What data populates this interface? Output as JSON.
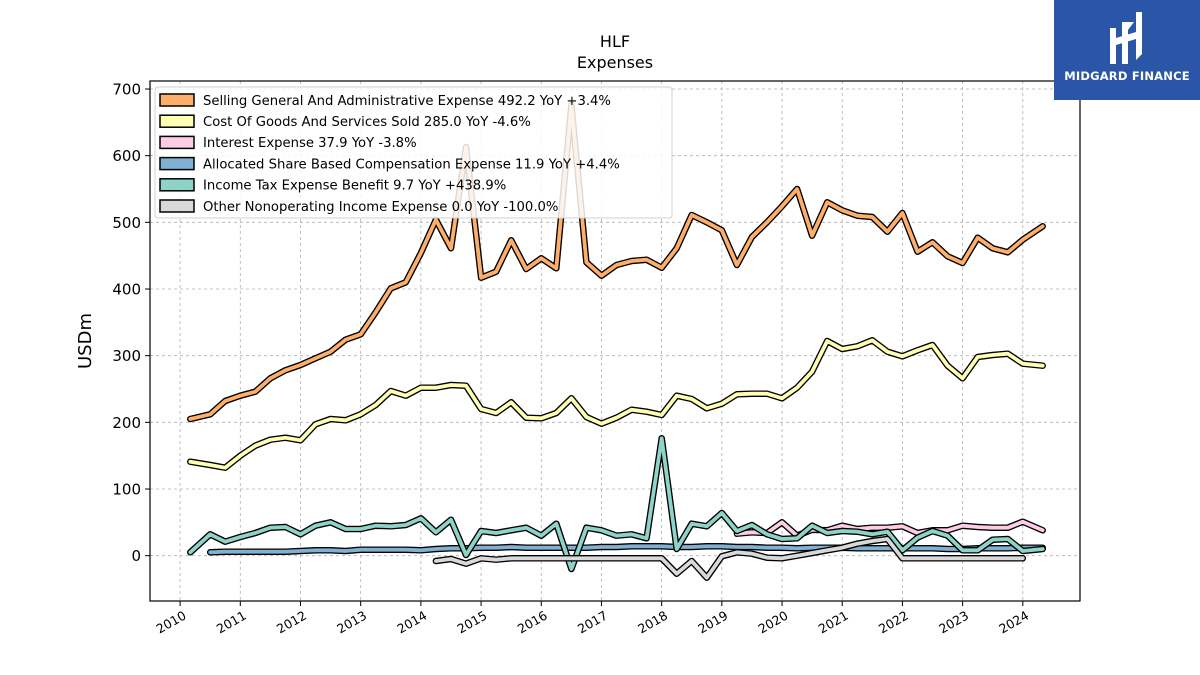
{
  "chart_data": {
    "type": "line",
    "title": "HLF",
    "subtitle": "Expenses",
    "ylabel": "USDm",
    "xlabel": "",
    "xlim": [
      2009.5,
      2024.95
    ],
    "ylim": [
      -68,
      712
    ],
    "yticks": [
      0,
      100,
      200,
      300,
      400,
      500,
      600,
      700
    ],
    "xticks": [
      2010,
      2011,
      2012,
      2013,
      2014,
      2015,
      2016,
      2017,
      2018,
      2019,
      2020,
      2021,
      2022,
      2023,
      2024
    ],
    "grid": true,
    "legend_position": "top-left",
    "series": [
      {
        "name": "Selling General And Administrative Expense",
        "legend": "Selling General And Administrative Expense  492.2 YoY +3.4%",
        "color": "#fdae6b",
        "x": [
          2010.17,
          2010.5,
          2010.75,
          2011.0,
          2011.25,
          2011.5,
          2011.75,
          2012.0,
          2012.25,
          2012.5,
          2012.75,
          2013.0,
          2013.25,
          2013.5,
          2013.75,
          2014.0,
          2014.25,
          2014.5,
          2014.75,
          2015.0,
          2015.25,
          2015.5,
          2015.75,
          2016.0,
          2016.25,
          2016.5,
          2016.75,
          2017.0,
          2017.25,
          2017.5,
          2017.75,
          2018.0,
          2018.25,
          2018.5,
          2018.75,
          2019.0,
          2019.25,
          2019.5,
          2019.75,
          2020.0,
          2020.25,
          2020.5,
          2020.75,
          2021.0,
          2021.25,
          2021.5,
          2021.75,
          2022.0,
          2022.25,
          2022.5,
          2022.75,
          2023.0,
          2023.25,
          2023.5,
          2023.75,
          2024.0,
          2024.33
        ],
        "y": [
          205,
          212,
          232,
          240,
          246,
          266,
          278,
          286,
          296,
          306,
          324,
          332,
          365,
          401,
          410,
          454,
          504,
          461,
          613,
          417,
          426,
          473,
          430,
          446,
          431,
          676,
          440,
          420,
          436,
          442,
          444,
          432,
          461,
          511,
          500,
          488,
          436,
          478,
          500,
          524,
          550,
          480,
          530,
          518,
          510,
          508,
          486,
          514,
          456,
          470,
          449,
          439,
          477,
          461,
          455,
          474,
          494
        ]
      },
      {
        "name": "Cost Of Goods And Services Sold",
        "legend": "Cost Of Goods And Services Sold  285.0 YoY -4.6%",
        "color": "#ffffb3",
        "x": [
          2010.17,
          2010.5,
          2010.75,
          2011.0,
          2011.25,
          2011.5,
          2011.75,
          2012.0,
          2012.25,
          2012.5,
          2012.75,
          2013.0,
          2013.25,
          2013.5,
          2013.75,
          2014.0,
          2014.25,
          2014.5,
          2014.75,
          2015.0,
          2015.25,
          2015.5,
          2015.75,
          2016.0,
          2016.25,
          2016.5,
          2016.75,
          2017.0,
          2017.25,
          2017.5,
          2017.75,
          2018.0,
          2018.25,
          2018.5,
          2018.75,
          2019.0,
          2019.25,
          2019.5,
          2019.75,
          2020.0,
          2020.25,
          2020.5,
          2020.75,
          2021.0,
          2021.25,
          2021.5,
          2021.75,
          2022.0,
          2022.25,
          2022.5,
          2022.75,
          2023.0,
          2023.25,
          2023.5,
          2023.75,
          2024.0,
          2024.33
        ],
        "y": [
          141,
          136,
          132,
          150,
          165,
          174,
          177,
          173,
          197,
          205,
          203,
          212,
          226,
          247,
          240,
          252,
          252,
          256,
          255,
          220,
          214,
          230,
          207,
          206,
          214,
          236,
          208,
          198,
          207,
          219,
          216,
          211,
          240,
          235,
          221,
          228,
          242,
          243,
          243,
          236,
          252,
          276,
          322,
          310,
          314,
          323,
          306,
          299,
          308,
          316,
          285,
          266,
          298,
          301,
          303,
          288,
          285
        ]
      },
      {
        "name": "Interest Expense",
        "legend": "Interest Expense  37.9 YoY -3.8%",
        "color": "#fccde5",
        "x": [
          2019.25,
          2019.5,
          2019.75,
          2020.0,
          2020.25,
          2020.5,
          2020.75,
          2021.0,
          2021.25,
          2021.5,
          2021.75,
          2022.0,
          2022.25,
          2022.5,
          2022.75,
          2023.0,
          2023.25,
          2023.5,
          2023.75,
          2024.0,
          2024.33
        ],
        "y": [
          33,
          35,
          34,
          50,
          30,
          39,
          38,
          45,
          40,
          42,
          42,
          44,
          34,
          38,
          38,
          45,
          43,
          42,
          42,
          51,
          38
        ]
      },
      {
        "name": "Allocated Share Based Compensation Expense",
        "legend": "Allocated Share Based Compensation Expense  11.9 YoY +4.4%",
        "color": "#80b1d3",
        "x": [
          2010.5,
          2010.75,
          2011.0,
          2011.25,
          2011.5,
          2011.75,
          2012.0,
          2012.25,
          2012.5,
          2012.75,
          2013.0,
          2013.25,
          2013.5,
          2013.75,
          2014.0,
          2014.25,
          2014.5,
          2014.75,
          2015.0,
          2015.25,
          2015.5,
          2015.75,
          2016.0,
          2016.25,
          2016.5,
          2016.75,
          2017.0,
          2017.25,
          2017.5,
          2017.75,
          2018.0,
          2018.25,
          2018.5,
          2018.75,
          2019.0,
          2019.25,
          2019.5,
          2019.75,
          2020.0,
          2020.25,
          2020.5,
          2020.75,
          2021.0,
          2021.25,
          2021.5,
          2021.75,
          2022.0,
          2022.25,
          2022.5,
          2022.75,
          2023.0,
          2023.25,
          2023.5,
          2023.75,
          2024.0,
          2024.33
        ],
        "y": [
          5,
          6,
          6,
          6,
          6,
          6,
          7,
          8,
          8,
          7,
          9,
          9,
          9,
          9,
          8,
          10,
          11,
          11,
          12,
          12,
          13,
          12,
          12,
          12,
          12,
          12,
          13,
          13,
          14,
          14,
          14,
          13,
          13,
          14,
          14,
          13,
          13,
          12,
          12,
          11,
          12,
          12,
          12,
          11,
          11,
          11,
          11,
          11,
          11,
          10,
          10,
          11,
          11,
          11,
          12,
          12
        ]
      },
      {
        "name": "Income Tax Expense Benefit",
        "legend": "Income Tax Expense Benefit  9.7 YoY +438.9%",
        "color": "#8dd3c7",
        "x": [
          2010.17,
          2010.5,
          2010.75,
          2011.0,
          2011.25,
          2011.5,
          2011.75,
          2012.0,
          2012.25,
          2012.5,
          2012.75,
          2013.0,
          2013.25,
          2013.5,
          2013.75,
          2014.0,
          2014.25,
          2014.5,
          2014.75,
          2015.0,
          2015.25,
          2015.5,
          2015.75,
          2016.0,
          2016.25,
          2016.5,
          2016.75,
          2017.0,
          2017.25,
          2017.5,
          2017.75,
          2018.0,
          2018.25,
          2018.5,
          2018.75,
          2019.0,
          2019.25,
          2019.5,
          2019.75,
          2020.0,
          2020.25,
          2020.5,
          2020.75,
          2021.0,
          2021.25,
          2021.5,
          2021.75,
          2022.0,
          2022.25,
          2022.5,
          2022.75,
          2023.0,
          2023.25,
          2023.5,
          2023.75,
          2024.0,
          2024.33
        ],
        "y": [
          5,
          32,
          21,
          28,
          34,
          42,
          43,
          32,
          45,
          50,
          40,
          40,
          45,
          44,
          46,
          56,
          35,
          54,
          1,
          37,
          34,
          38,
          42,
          30,
          48,
          -20,
          42,
          38,
          30,
          32,
          26,
          176,
          10,
          48,
          44,
          64,
          37,
          46,
          32,
          25,
          26,
          45,
          34,
          37,
          36,
          32,
          36,
          8,
          27,
          37,
          30,
          8,
          8,
          24,
          25,
          7,
          10
        ]
      },
      {
        "name": "Other Nonoperating Income Expense",
        "legend": "Other Nonoperating Income Expense  0.0 YoY -100.0%",
        "color": "#d9d9d9",
        "x": [
          2014.25,
          2014.5,
          2014.75,
          2015.0,
          2015.25,
          2015.5,
          2015.75,
          2016.0,
          2016.25,
          2016.5,
          2016.75,
          2017.0,
          2017.25,
          2017.5,
          2017.75,
          2018.0,
          2018.25,
          2018.5,
          2018.75,
          2019.0,
          2019.25,
          2019.5,
          2019.75,
          2020.0,
          2020.25,
          2020.5,
          2020.75,
          2021.0,
          2021.25,
          2021.5,
          2021.75,
          2022.0,
          2022.25,
          2022.5,
          2022.75,
          2023.0,
          2023.25,
          2023.5,
          2023.75,
          2024.0
        ],
        "y": [
          -8,
          -5,
          -12,
          -4,
          -6,
          -4,
          -4,
          -4,
          -4,
          -4,
          -4,
          -4,
          -4,
          -4,
          -4,
          -4,
          -27,
          -8,
          -33,
          -1,
          5,
          3,
          -3,
          -4,
          0,
          4,
          8,
          12,
          18,
          22,
          25,
          -4,
          -4,
          -4,
          -4,
          -4,
          -4,
          -4,
          -4,
          -4
        ]
      }
    ]
  },
  "logo": {
    "text": "MIDGARD FINANCE"
  }
}
